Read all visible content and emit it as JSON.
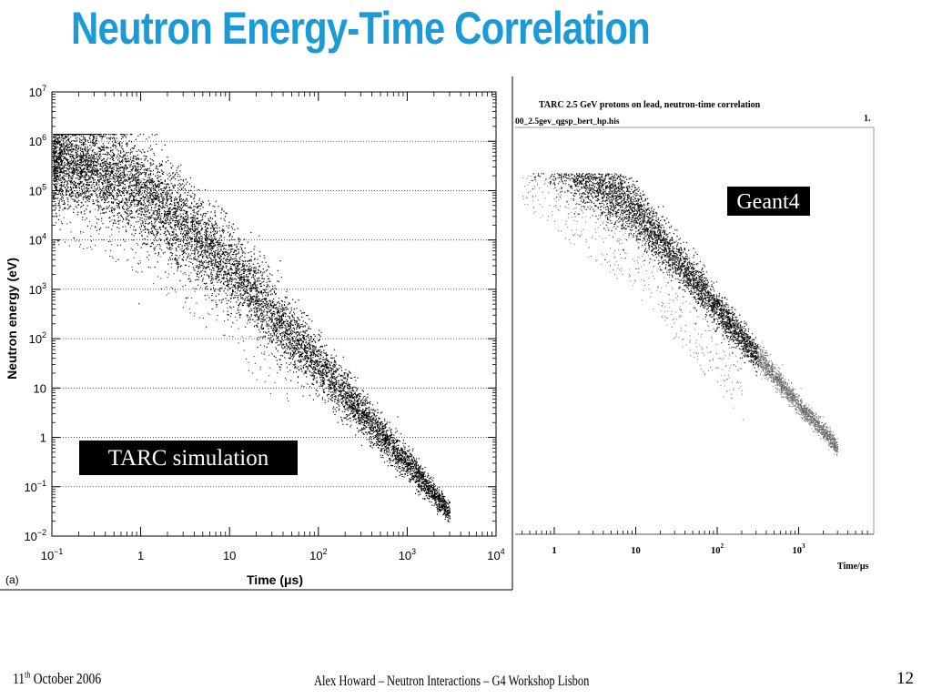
{
  "slide": {
    "title": "Neutron Energy-Time Correlation",
    "title_color": "#1a9ad6",
    "footer_date_day": "11",
    "footer_date_sup": "th",
    "footer_date_rest": " October 2006",
    "footer_center": "Alex Howard – Neutron Interactions – G4 Workshop Lisbon",
    "page_number": "12"
  },
  "chart_data": [
    {
      "type": "scatter",
      "panel_label": "(a)",
      "annotation": "TARC simulation",
      "xlabel": "Time (μs)",
      "ylabel": "Neutron energy (eV)",
      "xscale": "log",
      "yscale": "log",
      "xlim": [
        0.1,
        10000
      ],
      "ylim": [
        0.01,
        10000000
      ],
      "x_ticks": [
        {
          "value": 0.1,
          "base": "10",
          "exp": "−1",
          "plain": ""
        },
        {
          "value": 1,
          "base": "",
          "exp": "",
          "plain": "1"
        },
        {
          "value": 10,
          "base": "",
          "exp": "",
          "plain": "10"
        },
        {
          "value": 100,
          "base": "10",
          "exp": "2",
          "plain": ""
        },
        {
          "value": 1000,
          "base": "10",
          "exp": "3",
          "plain": ""
        },
        {
          "value": 10000,
          "base": "10",
          "exp": "4",
          "plain": ""
        }
      ],
      "y_ticks": [
        {
          "value": 0.01,
          "base": "10",
          "exp": "−2",
          "plain": ""
        },
        {
          "value": 0.1,
          "base": "10",
          "exp": "−1",
          "plain": ""
        },
        {
          "value": 1,
          "base": "",
          "exp": "",
          "plain": "1"
        },
        {
          "value": 10,
          "base": "",
          "exp": "",
          "plain": "10"
        },
        {
          "value": 100,
          "base": "10",
          "exp": "2",
          "plain": ""
        },
        {
          "value": 1000,
          "base": "10",
          "exp": "3",
          "plain": ""
        },
        {
          "value": 10000,
          "base": "10",
          "exp": "4",
          "plain": ""
        },
        {
          "value": 100000,
          "base": "10",
          "exp": "5",
          "plain": ""
        },
        {
          "value": 1000000,
          "base": "10",
          "exp": "6",
          "plain": ""
        },
        {
          "value": 10000000,
          "base": "10",
          "exp": "7",
          "plain": ""
        }
      ],
      "grid": "horizontal dotted",
      "band": [
        {
          "time_us": 0.1,
          "energy_ev": 400000
        },
        {
          "time_us": 0.3,
          "energy_ev": 300000
        },
        {
          "time_us": 1,
          "energy_ev": 100000
        },
        {
          "time_us": 10,
          "energy_ev": 3000
        },
        {
          "time_us": 100,
          "energy_ev": 30
        },
        {
          "time_us": 1000,
          "energy_ev": 0.3
        },
        {
          "time_us": 3000,
          "energy_ev": 0.03
        }
      ]
    },
    {
      "type": "scatter",
      "title": "TARC 2.5 GeV protons on lead, neutron-time correlation",
      "subtitle": "00_2.5gev_qgsp_bert_hp.his",
      "corner_label": "1.",
      "annotation": "Geant4",
      "xlabel": "Time/μs",
      "xscale": "log",
      "x_ticks": [
        {
          "value": 1,
          "base": "",
          "exp": "",
          "plain": "1"
        },
        {
          "value": 10,
          "base": "",
          "exp": "",
          "plain": "10"
        },
        {
          "value": 100,
          "base": "10",
          "exp": "2",
          "plain": ""
        },
        {
          "value": 1000,
          "base": "10",
          "exp": "3",
          "plain": ""
        }
      ],
      "band": [
        {
          "time_us": 0.4,
          "energy_ev": 100000
        },
        {
          "time_us": 1,
          "energy_ev": 30000
        },
        {
          "time_us": 10,
          "energy_ev": 1500
        },
        {
          "time_us": 100,
          "energy_ev": 15
        },
        {
          "time_us": 1000,
          "energy_ev": 0.15
        },
        {
          "time_us": 3000,
          "energy_ev": 0.02
        }
      ]
    }
  ]
}
